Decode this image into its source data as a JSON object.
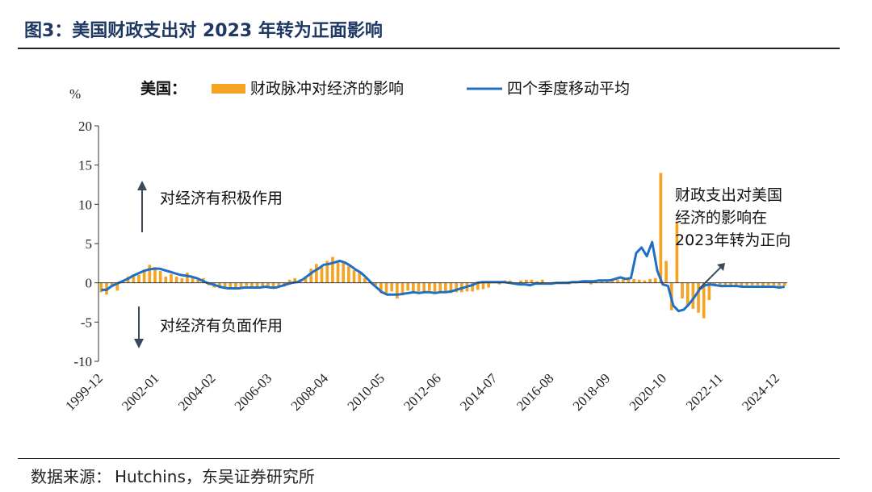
{
  "header": {
    "title": "图3：美国财政支出对 2023 年转为正面影响"
  },
  "footer": {
    "source_label": "数据来源：",
    "source_text": "Hutchins，东吴证券研究所"
  },
  "colors": {
    "bar": "#f4a322",
    "line": "#1f6fc5",
    "title": "#1f3864",
    "axis": "#333333",
    "arrow": "#3a4a5a"
  },
  "chart_data": {
    "type": "bar+line",
    "title": "图3：美国财政支出对 2023 年转为正面影响",
    "ylabel": "%",
    "ylim": [
      -10,
      20
    ],
    "yticks": [
      20,
      15,
      10,
      5,
      0,
      -5,
      -10
    ],
    "grid": false,
    "legend": {
      "position": "top",
      "prefix": "美国：",
      "entries": [
        "财政脉冲对经济的影响",
        "四个季度移动平均"
      ]
    },
    "x_tick_labels": [
      "1999-12",
      "2002-01",
      "2004-02",
      "2006-03",
      "2008-04",
      "2010-05",
      "2012-06",
      "2014-07",
      "2016-08",
      "2018-09",
      "2020-10",
      "2022-11",
      "2024-12"
    ],
    "annotations": {
      "positive": "对经济有积极作用",
      "negative": "对经济有负面作用",
      "callout": [
        "财政支出对美国",
        "经济的影响在",
        "2023年转为正向"
      ]
    },
    "series": [
      {
        "name": "财政脉冲对经济的影响",
        "kind": "bar",
        "values": [
          -1.2,
          -1.5,
          -0.3,
          -1.0,
          0.3,
          0.8,
          1.0,
          1.0,
          1.7,
          2.3,
          2.0,
          1.5,
          0.8,
          1.1,
          0.8,
          0.6,
          1.3,
          0.8,
          0.4,
          0.6,
          -0.3,
          -0.6,
          -0.7,
          -0.6,
          -0.6,
          -0.8,
          -0.7,
          -0.4,
          -0.6,
          -0.6,
          -0.5,
          -0.4,
          -0.8,
          -0.4,
          -0.5,
          0.4,
          0.6,
          0.4,
          0.6,
          1.8,
          2.4,
          2.0,
          2.8,
          3.3,
          2.8,
          2.5,
          2.1,
          1.6,
          1.3,
          0.6,
          0.1,
          -0.3,
          -1.3,
          -1.3,
          -1.1,
          -2.0,
          -1.6,
          -1.0,
          -1.3,
          -1.1,
          -1.3,
          -1.0,
          -1.2,
          -1.1,
          -1.3,
          -1.3,
          -1.2,
          -1.2,
          -1.1,
          -1.1,
          -0.9,
          -0.8,
          -0.6,
          0.1,
          -0.2,
          0.3,
          0.3,
          -0.1,
          0.3,
          0.4,
          0.4,
          0.2,
          0.4,
          -0.2,
          0.1,
          0.1,
          0.1,
          -0.2,
          0.0,
          0.3,
          0.2,
          -0.2,
          0.1,
          0.3,
          0.3,
          0.3,
          0.4,
          0.5,
          0.5,
          0.5,
          0.4,
          0.3,
          0.5,
          0.6,
          14.0,
          2.8,
          -3.5,
          7.8,
          -2.0,
          -3.0,
          -3.3,
          -3.8,
          -4.5,
          -2.2,
          -0.3,
          -0.4,
          -0.3,
          -0.3,
          -0.4,
          -0.4,
          -0.3,
          -0.3,
          -0.3,
          -0.4,
          -0.3,
          -0.3,
          -0.4,
          -0.4
        ]
      },
      {
        "name": "四个季度移动平均",
        "kind": "line",
        "values": [
          -0.9,
          -0.9,
          -0.4,
          -0.1,
          0.2,
          0.5,
          0.9,
          1.2,
          1.5,
          1.7,
          1.8,
          1.8,
          1.6,
          1.4,
          1.2,
          1.0,
          0.9,
          0.8,
          0.6,
          0.3,
          0.0,
          -0.2,
          -0.4,
          -0.6,
          -0.7,
          -0.7,
          -0.7,
          -0.6,
          -0.6,
          -0.6,
          -0.6,
          -0.5,
          -0.6,
          -0.6,
          -0.4,
          -0.2,
          0.0,
          0.1,
          0.4,
          0.9,
          1.4,
          1.8,
          2.3,
          2.4,
          2.6,
          2.8,
          2.6,
          2.2,
          1.7,
          1.3,
          0.7,
          0.0,
          -0.6,
          -1.2,
          -1.5,
          -1.5,
          -1.5,
          -1.4,
          -1.3,
          -1.2,
          -1.3,
          -1.2,
          -1.2,
          -1.3,
          -1.2,
          -1.2,
          -1.1,
          -0.9,
          -0.7,
          -0.5,
          -0.3,
          0.0,
          0.1,
          0.1,
          0.1,
          0.1,
          0.1,
          0.0,
          -0.1,
          -0.2,
          -0.2,
          -0.3,
          -0.1,
          -0.1,
          -0.1,
          -0.1,
          0.0,
          0.0,
          0.0,
          0.1,
          0.1,
          0.2,
          0.2,
          0.2,
          0.3,
          0.3,
          0.3,
          0.5,
          0.7,
          0.5,
          0.6,
          3.8,
          4.5,
          3.4,
          5.2,
          1.5,
          -0.2,
          -0.4,
          -2.9,
          -3.6,
          -3.4,
          -2.7,
          -1.8,
          -0.8,
          -0.3,
          -0.2,
          -0.3,
          -0.4,
          -0.4,
          -0.4,
          -0.4,
          -0.5,
          -0.5,
          -0.5,
          -0.5,
          -0.5,
          -0.5,
          -0.5,
          -0.6,
          -0.5
        ]
      }
    ]
  }
}
